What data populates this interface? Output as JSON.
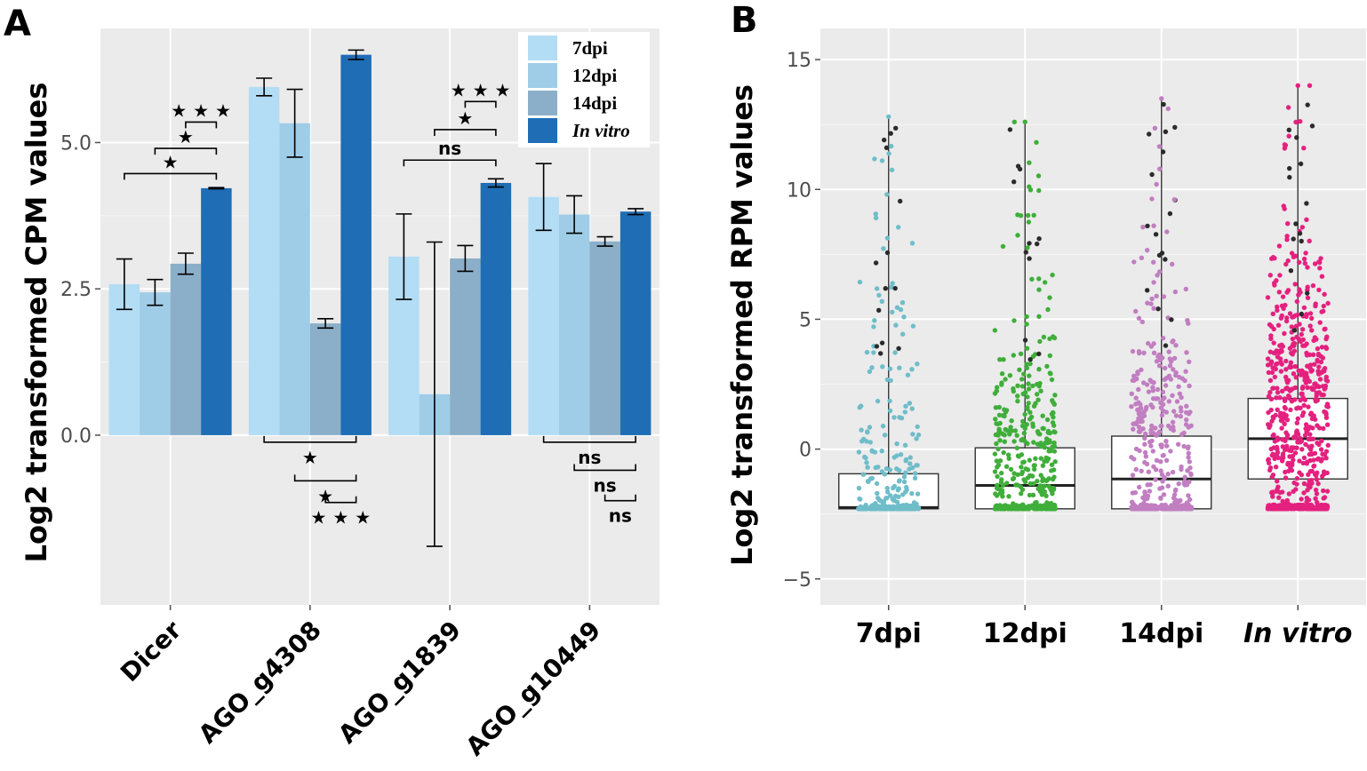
{
  "panels": {
    "a_letter": "A",
    "b_letter": "B"
  },
  "chart_data": [
    {
      "type": "bar",
      "panel": "A",
      "ylabel": "Log2 transformed CPM values",
      "xlabel": "",
      "ylim": [
        -2.9,
        6.95
      ],
      "yticks": [
        0.0,
        2.5,
        5.0
      ],
      "ytick_labels": [
        "0.0",
        "2.5",
        "5.0"
      ],
      "categories": [
        "Dicer",
        "AGO_g4308",
        "AGO_g1839",
        "AGO_g10449"
      ],
      "series": [
        {
          "name": "7dpi",
          "italic": false,
          "color": "#b3dcf5",
          "values": [
            2.58,
            5.95,
            3.05,
            4.07
          ],
          "err": [
            0.43,
            0.15,
            0.73,
            0.57
          ]
        },
        {
          "name": "12dpi",
          "italic": false,
          "color": "#9fcde8",
          "values": [
            2.44,
            5.33,
            0.7,
            3.77
          ],
          "err": [
            0.22,
            0.58,
            2.6,
            0.32
          ]
        },
        {
          "name": "14dpi",
          "italic": false,
          "color": "#8bafc8",
          "values": [
            2.93,
            1.91,
            3.02,
            3.31
          ],
          "err": [
            0.18,
            0.08,
            0.22,
            0.08
          ]
        },
        {
          "name": "In vitro",
          "italic": true,
          "color": "#1f6db5",
          "values": [
            4.22,
            6.5,
            4.31,
            3.82
          ],
          "err": [
            0.01,
            0.08,
            0.07,
            0.05
          ]
        }
      ],
      "significance": [
        {
          "label": "★ ★ ★",
          "group": 0,
          "from": 2,
          "to": 3,
          "level": 5.35,
          "pos": "above"
        },
        {
          "label": "★",
          "group": 0,
          "from": 1,
          "to": 3,
          "level": 4.9,
          "pos": "above"
        },
        {
          "label": "★",
          "group": 0,
          "from": 0,
          "to": 3,
          "level": 4.47,
          "pos": "above"
        },
        {
          "label": "★",
          "group": 1,
          "from": 0,
          "to": 3,
          "level": -0.12,
          "pos": "below"
        },
        {
          "label": "★",
          "group": 1,
          "from": 1,
          "to": 3,
          "level": -0.78,
          "pos": "below"
        },
        {
          "label": "★ ★ ★",
          "group": 1,
          "from": 2,
          "to": 3,
          "level": -1.15,
          "pos": "below"
        },
        {
          "label": "★ ★ ★",
          "group": 2,
          "from": 2,
          "to": 3,
          "level": 5.7,
          "pos": "above"
        },
        {
          "label": "★",
          "group": 2,
          "from": 1,
          "to": 3,
          "level": 5.22,
          "pos": "above"
        },
        {
          "label": "ns",
          "group": 2,
          "from": 0,
          "to": 3,
          "level": 4.7,
          "pos": "above"
        },
        {
          "label": "ns",
          "group": 3,
          "from": 0,
          "to": 3,
          "level": -0.12,
          "pos": "below"
        },
        {
          "label": "ns",
          "group": 3,
          "from": 1,
          "to": 3,
          "level": -0.6,
          "pos": "below"
        },
        {
          "label": "ns",
          "group": 3,
          "from": 2,
          "to": 3,
          "level": -1.12,
          "pos": "below"
        }
      ],
      "legend": {
        "position": "top-right",
        "entries": [
          "7dpi",
          "12dpi",
          "14dpi",
          "In vitro"
        ]
      }
    },
    {
      "type": "box",
      "panel": "B",
      "ylabel": "Log2 transformed RPM values",
      "xlabel": "",
      "ylim": [
        -6,
        16.2
      ],
      "yticks": [
        -5,
        0,
        5,
        10,
        15
      ],
      "ytick_labels": [
        "−5",
        "0",
        "5",
        "10",
        "15"
      ],
      "categories": [
        "7dpi",
        "12dpi",
        "14dpi",
        "In vitro"
      ],
      "category_italic": [
        false,
        false,
        false,
        true
      ],
      "point_colors": [
        "#6fbdc9",
        "#3fae3a",
        "#c17ec1",
        "#e4217f"
      ],
      "outlier_color": "#2b2b2b",
      "boxes": [
        {
          "min": -2.3,
          "q1": -2.3,
          "median": -2.25,
          "q3": -0.95,
          "max": 12.8
        },
        {
          "min": -2.3,
          "q1": -2.3,
          "median": -1.4,
          "q3": 0.05,
          "max": 12.6
        },
        {
          "min": -2.3,
          "q1": -2.3,
          "median": -1.15,
          "q3": 0.5,
          "max": 13.5
        },
        {
          "min": -2.3,
          "q1": -1.15,
          "median": 0.4,
          "q3": 1.95,
          "max": 14.0
        }
      ]
    }
  ]
}
